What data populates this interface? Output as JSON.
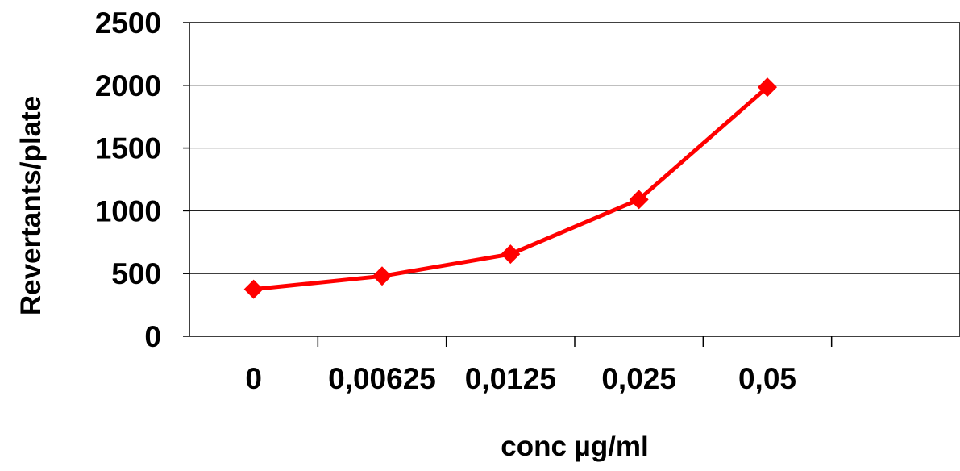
{
  "chart_data": {
    "type": "line",
    "title": "",
    "xlabel": "conc µg/ml",
    "ylabel": "Revertants/plate",
    "categories": [
      "0",
      "0,00625",
      "0,0125",
      "0,025",
      "0,05"
    ],
    "series": [
      {
        "values": [
          375,
          480,
          655,
          1090,
          1985
        ],
        "color": "#ff0000",
        "marker": "diamond"
      }
    ],
    "ylim": [
      0,
      2500
    ],
    "yticks": [
      0,
      500,
      1000,
      1500,
      2000,
      2500
    ],
    "x_slots": 6,
    "grid": {
      "horizontal": true,
      "vertical": false
    },
    "legend": "none",
    "colors": {
      "line": "#ff0000",
      "axis": "#000000",
      "grid": "#000000"
    }
  }
}
